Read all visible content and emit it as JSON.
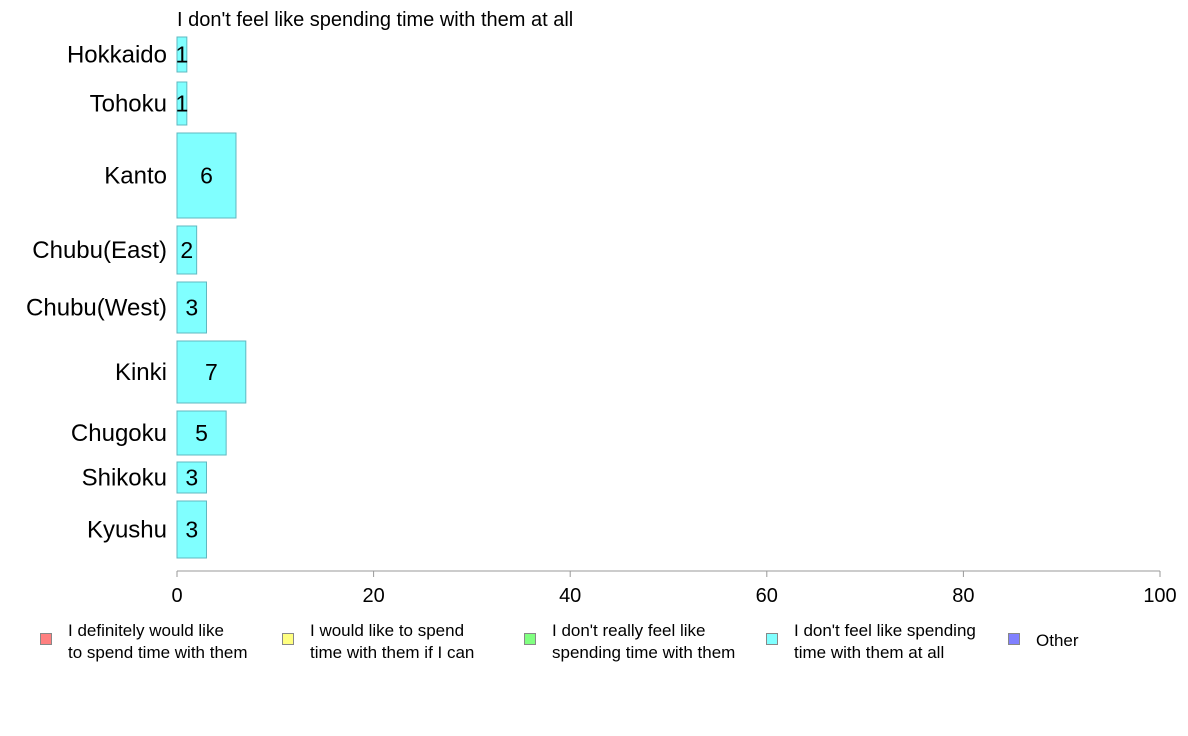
{
  "chart_data": {
    "type": "bar",
    "orientation": "horizontal",
    "title": "I don't feel like spending time with them at all",
    "categories": [
      "Hokkaido",
      "Tohoku",
      "Kanto",
      "Chubu(East)",
      "Chubu(West)",
      "Kinki",
      "Chugoku",
      "Shikoku",
      "Kyushu"
    ],
    "series": [
      {
        "name": "I don't feel like spending time with them at all",
        "color": "#80ffff",
        "values": [
          1,
          1,
          6,
          2,
          3,
          7,
          5,
          3,
          3
        ],
        "data_labels": [
          "1",
          "1",
          "6",
          "2",
          "3",
          "7",
          "5",
          "3",
          "3"
        ]
      }
    ],
    "xlim": [
      0,
      100
    ],
    "x_ticks": [
      "0",
      "20",
      "40",
      "60",
      "80",
      "100"
    ],
    "grid": false,
    "legend_position": "bottom"
  },
  "legend": [
    {
      "label": "I definitely would like\nto spend time with them",
      "color": "#ff8080"
    },
    {
      "label": "I would like to spend\ntime with them if I can",
      "color": "#ffff80"
    },
    {
      "label": "I don't really feel like\nspending time with them",
      "color": "#80ff80"
    },
    {
      "label": "I don't feel like spending\ntime with them at all",
      "color": "#80ffff"
    },
    {
      "label": "Other",
      "color": "#8080ff"
    }
  ]
}
